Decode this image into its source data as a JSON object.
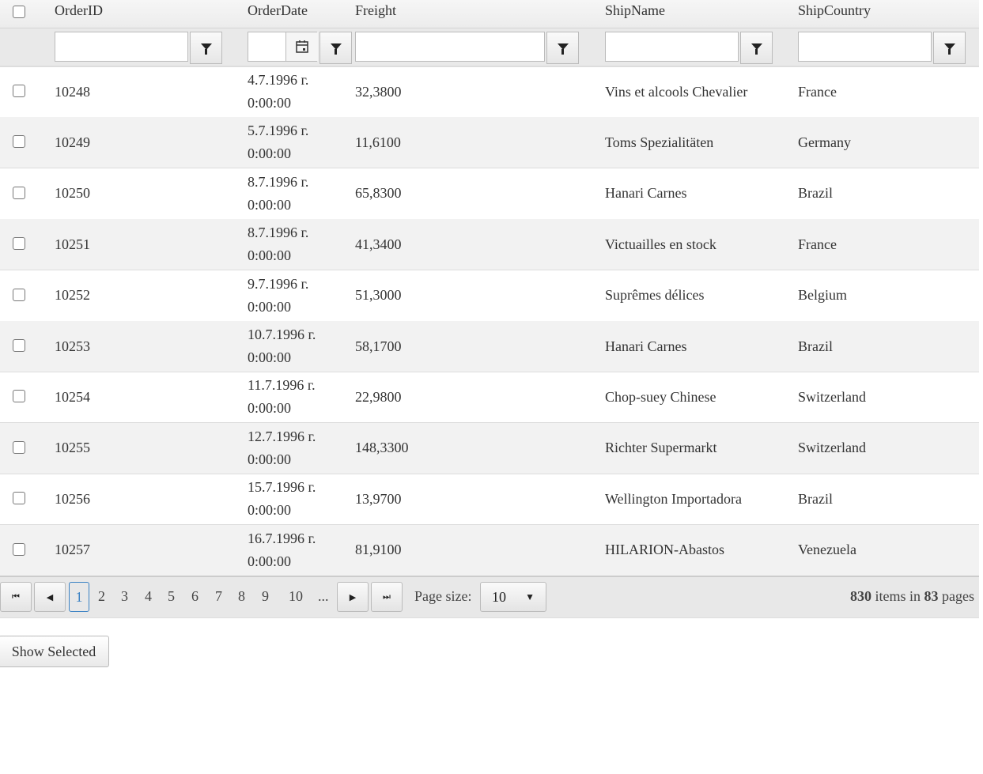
{
  "columns": [
    "OrderID",
    "OrderDate",
    "Freight",
    "ShipName",
    "ShipCountry"
  ],
  "rows": [
    {
      "id": "10248",
      "date": "4.7.1996 г.",
      "time": "0:00:00",
      "freight": "32,3800",
      "name": "Vins et alcools Chevalier",
      "country": "France"
    },
    {
      "id": "10249",
      "date": "5.7.1996 г.",
      "time": "0:00:00",
      "freight": "11,6100",
      "name": "Toms Spezialitäten",
      "country": "Germany"
    },
    {
      "id": "10250",
      "date": "8.7.1996 г.",
      "time": "0:00:00",
      "freight": "65,8300",
      "name": "Hanari Carnes",
      "country": "Brazil"
    },
    {
      "id": "10251",
      "date": "8.7.1996 г.",
      "time": "0:00:00",
      "freight": "41,3400",
      "name": "Victuailles en stock",
      "country": "France"
    },
    {
      "id": "10252",
      "date": "9.7.1996 г.",
      "time": "0:00:00",
      "freight": "51,3000",
      "name": "Suprêmes délices",
      "country": "Belgium"
    },
    {
      "id": "10253",
      "date": "10.7.1996 г.",
      "time": "0:00:00",
      "freight": "58,1700",
      "name": "Hanari Carnes",
      "country": "Brazil"
    },
    {
      "id": "10254",
      "date": "11.7.1996 г.",
      "time": "0:00:00",
      "freight": "22,9800",
      "name": "Chop-suey Chinese",
      "country": "Switzerland"
    },
    {
      "id": "10255",
      "date": "12.7.1996 г.",
      "time": "0:00:00",
      "freight": "148,3300",
      "name": "Richter Supermarkt",
      "country": "Switzerland"
    },
    {
      "id": "10256",
      "date": "15.7.1996 г.",
      "time": "0:00:00",
      "freight": "13,9700",
      "name": "Wellington Importadora",
      "country": "Brazil"
    },
    {
      "id": "10257",
      "date": "16.7.1996 г.",
      "time": "0:00:00",
      "freight": "81,9100",
      "name": "HILARION-Abastos",
      "country": "Venezuela"
    }
  ],
  "pager": {
    "current": "1",
    "pages": [
      "2",
      "3",
      "4",
      "5",
      "6",
      "7",
      "8",
      "9",
      "10",
      "..."
    ],
    "page_size_label": "Page size:",
    "page_size": "10",
    "total_items": "830",
    "items_in": " items in ",
    "total_pages": "83",
    "pages_word": " pages"
  },
  "show_selected": "Show Selected"
}
